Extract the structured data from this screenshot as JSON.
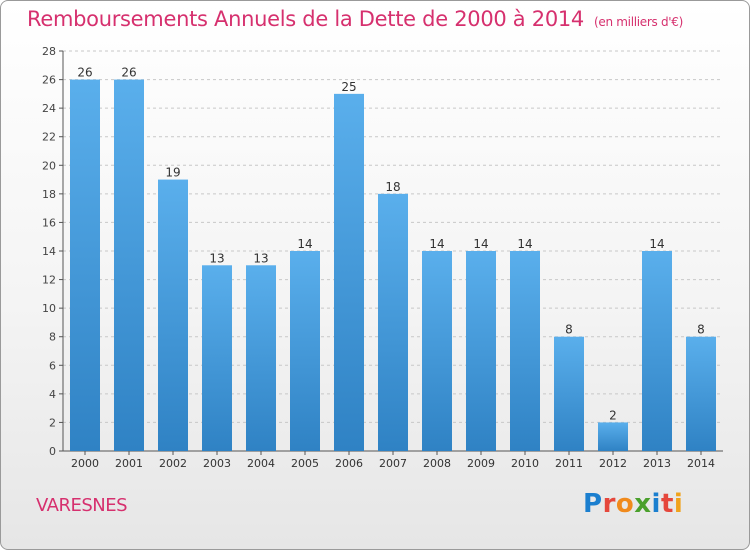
{
  "header": {
    "title": "Remboursements Annuels de la Dette de 2000 à 2014",
    "unit": "(en milliers d'€)"
  },
  "footer": {
    "commune": "VARESNES",
    "brand": "Proxiti",
    "brand_letters": [
      "P",
      "r",
      "o",
      "x",
      "i",
      "t",
      "i"
    ],
    "brand_colors": [
      "#1b7fcf",
      "#e5473c",
      "#f08a1c",
      "#4aa02c",
      "#1b7fcf",
      "#e5473c",
      "#f0a21c"
    ]
  },
  "colors": {
    "accent": "#d6306e",
    "bar_top": "#5aafec",
    "bar_bottom": "#2f82c4"
  },
  "chart_data": {
    "type": "bar",
    "title": "Remboursements Annuels de la Dette de 2000 à 2014",
    "subtitle": "(en milliers d'€)",
    "categories": [
      "2000",
      "2001",
      "2002",
      "2003",
      "2004",
      "2005",
      "2006",
      "2007",
      "2008",
      "2009",
      "2010",
      "2011",
      "2012",
      "2013",
      "2014"
    ],
    "values": [
      26,
      26,
      19,
      13,
      13,
      14,
      25,
      18,
      14,
      14,
      14,
      8,
      2,
      14,
      8
    ],
    "ylim": [
      0,
      28
    ],
    "yticks": [
      0,
      2,
      4,
      6,
      8,
      10,
      12,
      14,
      16,
      18,
      20,
      22,
      24,
      26,
      28
    ],
    "grid": true,
    "data_labels": true
  }
}
